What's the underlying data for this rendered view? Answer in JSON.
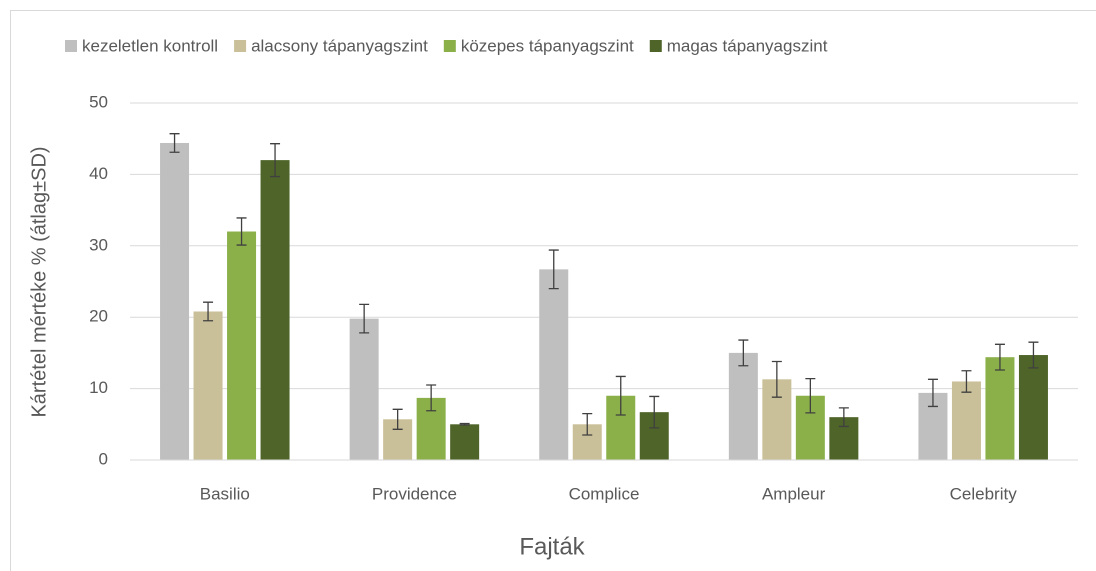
{
  "chart_data": {
    "type": "bar",
    "x_label": "Fajták",
    "y_label": "Kártétel mértéke % (átlag±SD)",
    "categories": [
      "Basilio",
      "Providence",
      "Complice",
      "Ampleur",
      "Celebrity"
    ],
    "series": [
      {
        "name": "kezeletlen kontroll",
        "color": "#bfbfbf",
        "values": [
          44.4,
          19.8,
          26.7,
          15,
          9.4
        ],
        "errors": [
          1.3,
          2,
          2.7,
          1.8,
          1.9
        ]
      },
      {
        "name": "alacsony tápanyagszint",
        "color": "#c9bf98",
        "values": [
          20.8,
          5.7,
          5,
          11.3,
          11
        ],
        "errors": [
          1.3,
          1.4,
          1.5,
          2.5,
          1.5
        ]
      },
      {
        "name": "közepes tápanyagszint",
        "color": "#8bb04a",
        "values": [
          32,
          8.7,
          9,
          9,
          14.4
        ],
        "errors": [
          1.9,
          1.8,
          2.7,
          2.4,
          1.8
        ]
      },
      {
        "name": "magas tápanyagszint",
        "color": "#4e6428",
        "values": [
          42,
          5,
          6.7,
          6,
          14.7
        ],
        "errors": [
          2.3,
          0.1,
          2.2,
          1.3,
          1.8
        ]
      }
    ],
    "ylim": [
      0,
      50
    ],
    "yticks": [
      0,
      10,
      20,
      30,
      40,
      50
    ],
    "grid": true,
    "legend": "top"
  }
}
